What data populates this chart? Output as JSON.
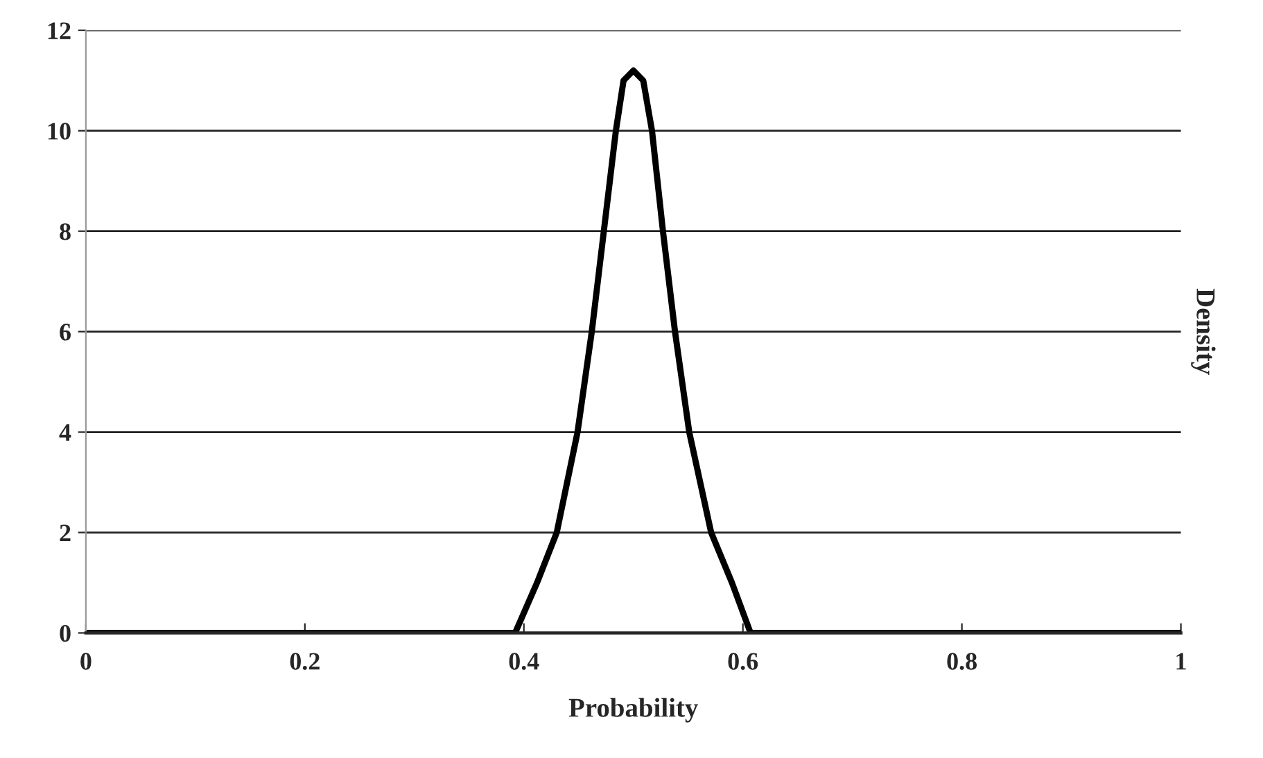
{
  "chart_data": {
    "type": "line",
    "xlabel": "Probability",
    "ylabel": "Density",
    "series": [
      {
        "color": "#000000",
        "x": [
          0,
          0.392,
          0.412,
          0.43,
          0.449,
          0.462,
          0.473,
          0.484,
          0.491,
          0.5,
          0.509,
          0.517,
          0.527,
          0.538,
          0.551,
          0.571,
          0.59,
          0.607,
          1
        ],
        "values": [
          0,
          0,
          1,
          2,
          4,
          6,
          8,
          10,
          11,
          11.2,
          11,
          10,
          8,
          6,
          4,
          2,
          1,
          0,
          0
        ]
      }
    ],
    "xlim": [
      0,
      1
    ],
    "xticks": [
      0,
      0.2,
      0.4,
      0.6,
      0.8,
      1
    ],
    "ylim": [
      0,
      12
    ],
    "yticks": [
      0,
      2,
      4,
      6,
      8,
      10,
      12
    ],
    "grid": "y",
    "marker": "none",
    "line_style": "solid",
    "legend": false
  }
}
